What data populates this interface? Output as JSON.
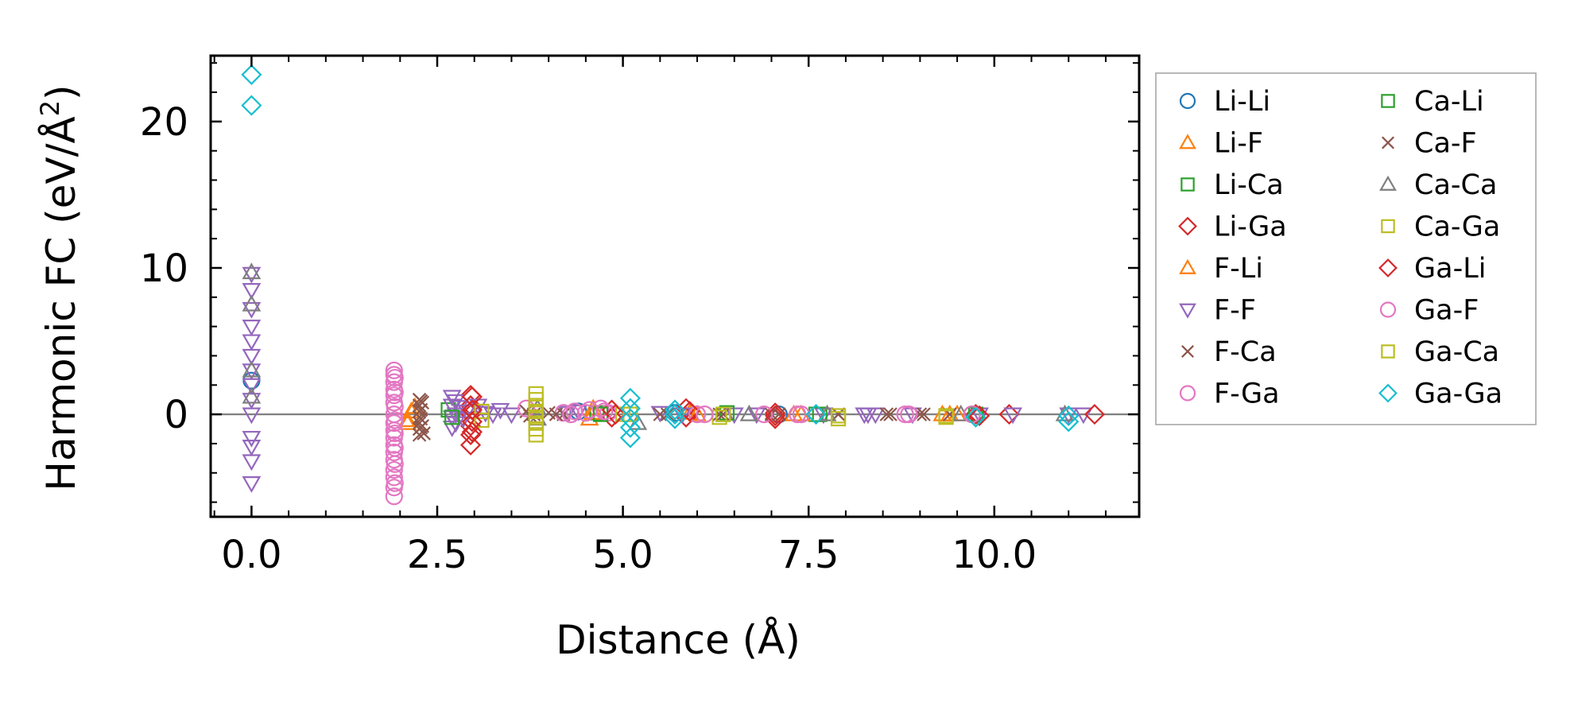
{
  "chart_data": {
    "type": "scatter",
    "xlabel": "Distance (Å)",
    "ylabel": "Harmonic FC (eV/Å²)",
    "ylabel_prefix": "Harmonic FC (eV/Å",
    "ylabel_sup": "2",
    "ylabel_suffix": ")",
    "xlim": [
      -0.55,
      11.95
    ],
    "ylim": [
      -7.0,
      24.5
    ],
    "xticks": [
      0.0,
      2.5,
      5.0,
      7.5,
      10.0
    ],
    "xtick_labels": [
      "0.0",
      "2.5",
      "5.0",
      "7.5",
      "10.0"
    ],
    "yticks": [
      0,
      10,
      20
    ],
    "ytick_labels": [
      "0",
      "10",
      "20"
    ],
    "grid": false,
    "zero_line": true,
    "legend_position": "outside-right",
    "series": [
      {
        "name": "Li-Li",
        "marker": "circle",
        "color": "#1f77b4",
        "fill": false,
        "points": [
          [
            0.0,
            2.3
          ],
          [
            4.4,
            0.2
          ],
          [
            5.7,
            0.1
          ],
          [
            7.1,
            0.0
          ],
          [
            9.7,
            0.0
          ]
        ]
      },
      {
        "name": "Li-F",
        "marker": "triangle-up",
        "color": "#ff7f0e",
        "fill": false,
        "points": [
          [
            2.1,
            -0.6
          ],
          [
            2.15,
            0.2
          ],
          [
            4.55,
            -0.3
          ],
          [
            4.6,
            0.4
          ],
          [
            5.9,
            0.1
          ],
          [
            7.3,
            0.0
          ],
          [
            9.3,
            0.0
          ]
        ]
      },
      {
        "name": "Li-Ca",
        "marker": "square",
        "color": "#2ca02c",
        "fill": false,
        "points": [
          [
            2.65,
            0.3
          ],
          [
            4.65,
            0.1
          ],
          [
            6.35,
            0.0
          ],
          [
            7.6,
            0.0
          ]
        ]
      },
      {
        "name": "Li-Ga",
        "marker": "diamond",
        "color": "#d62728",
        "fill": false,
        "points": [
          [
            2.95,
            1.3
          ],
          [
            2.95,
            0.6
          ],
          [
            2.95,
            0.0
          ],
          [
            2.95,
            -0.8
          ],
          [
            2.95,
            -1.4
          ],
          [
            2.95,
            -2.1
          ],
          [
            4.85,
            0.3
          ],
          [
            4.85,
            -0.2
          ],
          [
            5.85,
            0.4
          ],
          [
            5.85,
            -0.2
          ],
          [
            7.05,
            0.1
          ],
          [
            7.05,
            -0.3
          ],
          [
            9.75,
            0.0
          ],
          [
            10.2,
            0.0
          ]
        ]
      },
      {
        "name": "F-Li",
        "marker": "triangle-up",
        "color": "#ff7f0e",
        "fill": false,
        "points": [
          [
            2.1,
            -0.4
          ],
          [
            2.2,
            0.5
          ],
          [
            4.6,
            0.1
          ],
          [
            6.0,
            0.0
          ],
          [
            7.4,
            0.0
          ],
          [
            9.4,
            0.0
          ],
          [
            9.5,
            0.0
          ]
        ]
      },
      {
        "name": "F-F",
        "marker": "triangle-down",
        "color": "#9467bd",
        "fill": false,
        "points": [
          [
            0.0,
            9.6
          ],
          [
            0.0,
            8.5
          ],
          [
            0.0,
            7.2
          ],
          [
            0.0,
            6.0
          ],
          [
            0.0,
            5.0
          ],
          [
            0.0,
            4.0
          ],
          [
            0.0,
            3.0
          ],
          [
            0.0,
            2.0
          ],
          [
            0.0,
            1.0
          ],
          [
            0.0,
            0.0
          ],
          [
            0.0,
            -1.6
          ],
          [
            0.0,
            -2.2
          ],
          [
            0.0,
            -3.2
          ],
          [
            0.0,
            -4.7
          ],
          [
            2.7,
            1.2
          ],
          [
            2.7,
            0.6
          ],
          [
            2.7,
            -0.2
          ],
          [
            2.7,
            -0.9
          ],
          [
            2.75,
            0.9
          ],
          [
            2.75,
            0.0
          ],
          [
            2.75,
            -0.6
          ],
          [
            2.8,
            0.5
          ],
          [
            2.85,
            -0.3
          ],
          [
            2.9,
            0.2
          ],
          [
            3.05,
            0.6
          ],
          [
            3.15,
            0.1
          ],
          [
            3.25,
            0.0
          ],
          [
            3.35,
            0.3
          ],
          [
            3.5,
            0.0
          ],
          [
            4.25,
            0.1
          ],
          [
            4.4,
            0.2
          ],
          [
            5.5,
            0.1
          ],
          [
            5.8,
            0.0
          ],
          [
            6.5,
            0.0
          ],
          [
            6.8,
            0.0
          ],
          [
            7.7,
            0.0
          ],
          [
            8.25,
            0.0
          ],
          [
            8.3,
            0.0
          ],
          [
            8.4,
            0.0
          ],
          [
            8.9,
            0.0
          ],
          [
            9.8,
            0.0
          ],
          [
            10.25,
            0.0
          ],
          [
            11.0,
            0.0
          ],
          [
            11.2,
            0.0
          ]
        ]
      },
      {
        "name": "F-Ca",
        "marker": "x",
        "color": "#8c564b",
        "fill": false,
        "points": [
          [
            2.26,
            1.0
          ],
          [
            2.26,
            0.6
          ],
          [
            2.26,
            0.2
          ],
          [
            2.26,
            -0.2
          ],
          [
            2.26,
            -0.6
          ],
          [
            2.26,
            -1.0
          ],
          [
            2.26,
            -1.4
          ],
          [
            2.3,
            0.8
          ],
          [
            2.3,
            -0.8
          ],
          [
            3.7,
            0.2
          ],
          [
            3.75,
            -0.1
          ],
          [
            4.0,
            0.1
          ],
          [
            4.2,
            0.0
          ],
          [
            5.5,
            0.0
          ],
          [
            6.3,
            0.0
          ],
          [
            7.0,
            0.0
          ],
          [
            7.9,
            0.0
          ],
          [
            8.55,
            0.0
          ],
          [
            9.0,
            0.0
          ],
          [
            9.4,
            0.0
          ]
        ]
      },
      {
        "name": "F-Ga",
        "marker": "circle",
        "color": "#e377c2",
        "fill": false,
        "points": [
          [
            1.92,
            3.0
          ],
          [
            1.92,
            2.7
          ],
          [
            1.92,
            2.2
          ],
          [
            1.92,
            1.7
          ],
          [
            1.92,
            1.3
          ],
          [
            1.92,
            0.8
          ],
          [
            1.92,
            0.0
          ],
          [
            1.92,
            -0.6
          ],
          [
            1.92,
            -1.1
          ],
          [
            1.92,
            -1.6
          ],
          [
            1.92,
            -2.1
          ],
          [
            1.92,
            -2.6
          ],
          [
            1.92,
            -3.1
          ],
          [
            1.92,
            -3.8
          ],
          [
            1.92,
            -4.3
          ],
          [
            1.92,
            -5.0
          ],
          [
            1.92,
            -5.6
          ],
          [
            4.2,
            0.1
          ],
          [
            4.35,
            0.2
          ],
          [
            4.5,
            0.1
          ],
          [
            4.7,
            0.4
          ],
          [
            4.8,
            0.1
          ],
          [
            6.0,
            0.0
          ],
          [
            6.9,
            0.0
          ],
          [
            7.4,
            0.0
          ],
          [
            8.8,
            0.0
          ]
        ]
      },
      {
        "name": "Ca-Li",
        "marker": "square",
        "color": "#2ca02c",
        "fill": false,
        "points": [
          [
            2.7,
            -0.2
          ],
          [
            4.7,
            0.0
          ],
          [
            6.4,
            0.1
          ],
          [
            7.65,
            0.0
          ],
          [
            9.75,
            0.0
          ]
        ]
      },
      {
        "name": "Ca-F",
        "marker": "x",
        "color": "#8c564b",
        "fill": false,
        "points": [
          [
            2.28,
            0.9
          ],
          [
            2.28,
            0.3
          ],
          [
            2.28,
            -0.3
          ],
          [
            2.28,
            -0.9
          ],
          [
            2.32,
            -1.3
          ],
          [
            3.8,
            0.0
          ],
          [
            4.1,
            0.0
          ],
          [
            5.6,
            0.0
          ],
          [
            6.35,
            0.0
          ],
          [
            7.1,
            0.0
          ],
          [
            7.9,
            0.0
          ],
          [
            8.6,
            0.0
          ],
          [
            9.05,
            0.0
          ]
        ]
      },
      {
        "name": "Ca-Ca",
        "marker": "triangle-up",
        "color": "#7f7f7f",
        "fill": false,
        "points": [
          [
            0.0,
            9.7
          ],
          [
            0.0,
            7.5
          ],
          [
            0.0,
            3.0
          ],
          [
            0.0,
            1.2
          ],
          [
            3.85,
            0.4
          ],
          [
            3.85,
            -0.3
          ],
          [
            5.2,
            -0.6
          ],
          [
            6.7,
            0.0
          ],
          [
            7.75,
            0.0
          ],
          [
            9.55,
            0.0
          ],
          [
            10.95,
            0.0
          ]
        ]
      },
      {
        "name": "Ca-Ga",
        "marker": "square",
        "color": "#bcbd22",
        "fill": false,
        "points": [
          [
            3.1,
            0.2
          ],
          [
            3.1,
            -0.4
          ],
          [
            5.0,
            0.0
          ],
          [
            6.3,
            -0.2
          ],
          [
            7.9,
            -0.3
          ],
          [
            9.35,
            -0.2
          ]
        ]
      },
      {
        "name": "Ga-Li",
        "marker": "diamond",
        "color": "#d62728",
        "fill": false,
        "points": [
          [
            2.97,
            1.2
          ],
          [
            2.97,
            0.3
          ],
          [
            2.97,
            -0.5
          ],
          [
            2.97,
            -1.2
          ],
          [
            4.9,
            0.0
          ],
          [
            5.9,
            0.2
          ],
          [
            7.05,
            -0.1
          ],
          [
            9.8,
            -0.1
          ],
          [
            11.35,
            0.0
          ]
        ]
      },
      {
        "name": "Ga-F",
        "marker": "circle",
        "color": "#e377c2",
        "fill": false,
        "points": [
          [
            1.93,
            2.5
          ],
          [
            1.93,
            1.5
          ],
          [
            1.93,
            0.5
          ],
          [
            1.93,
            -0.4
          ],
          [
            1.93,
            -1.3
          ],
          [
            1.93,
            -2.3
          ],
          [
            1.93,
            -3.4
          ],
          [
            1.93,
            -4.7
          ],
          [
            3.7,
            0.4
          ],
          [
            4.3,
            0.0
          ],
          [
            4.55,
            0.3
          ],
          [
            4.75,
            0.2
          ],
          [
            6.1,
            0.0
          ],
          [
            7.35,
            0.0
          ],
          [
            8.85,
            0.0
          ],
          [
            9.7,
            0.0
          ]
        ]
      },
      {
        "name": "Ga-Ca",
        "marker": "square",
        "color": "#bcbd22",
        "fill": false,
        "points": [
          [
            3.83,
            1.4
          ],
          [
            3.83,
            1.0
          ],
          [
            3.83,
            0.6
          ],
          [
            3.83,
            0.2
          ],
          [
            3.83,
            -0.2
          ],
          [
            3.83,
            -0.6
          ],
          [
            3.83,
            -1.0
          ],
          [
            3.83,
            -1.4
          ],
          [
            5.1,
            0.0
          ],
          [
            6.35,
            0.0
          ],
          [
            7.9,
            -0.1
          ],
          [
            9.35,
            -0.1
          ]
        ]
      },
      {
        "name": "Ga-Ga",
        "marker": "diamond",
        "color": "#17becf",
        "fill": false,
        "points": [
          [
            0.0,
            23.2
          ],
          [
            0.0,
            21.1
          ],
          [
            5.1,
            1.1
          ],
          [
            5.1,
            0.4
          ],
          [
            5.1,
            -0.3
          ],
          [
            5.1,
            -0.9
          ],
          [
            5.1,
            -1.6
          ],
          [
            5.7,
            0.3
          ],
          [
            5.7,
            0.0
          ],
          [
            5.7,
            -0.3
          ],
          [
            7.6,
            0.0
          ],
          [
            9.75,
            -0.2
          ],
          [
            11.0,
            -0.1
          ],
          [
            11.0,
            -0.5
          ]
        ]
      }
    ]
  }
}
